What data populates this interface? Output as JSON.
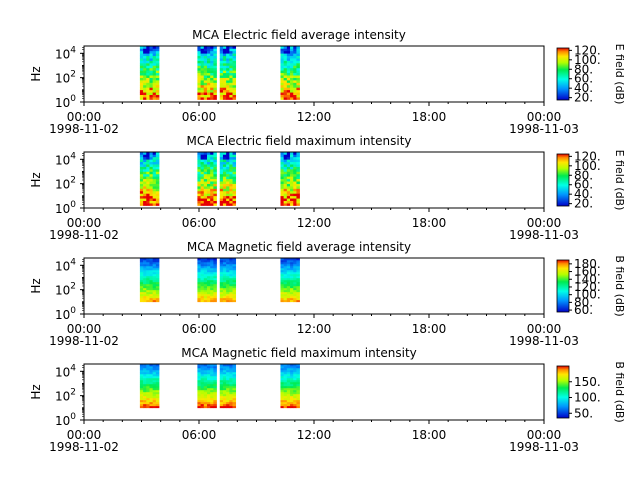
{
  "figure": {
    "time_ticks": [
      "00:00",
      "06:00",
      "12:00",
      "18:00",
      "00:00"
    ],
    "date_start": "1998-11-02",
    "date_end": "1998-11-03"
  },
  "chart_data": [
    {
      "type": "heatmap",
      "title": "MCA  Electric field average intensity",
      "ylabel": "Hz",
      "yscale": "log",
      "y_ticks": [
        "10^0",
        "10^2",
        "10^4"
      ],
      "colorbar_label": "E field (dB)",
      "colorbar_ticks": [
        "120.",
        "100.",
        "80.",
        "60.",
        "40.",
        "20."
      ],
      "colorbar_range": [
        15,
        125
      ],
      "x_range_hours": [
        0,
        24
      ],
      "data_intervals": [
        {
          "start": "02:55",
          "end": "03:55"
        },
        {
          "start": "05:55",
          "end": "06:55"
        },
        {
          "start": "07:05",
          "end": "07:55"
        },
        {
          "start": "10:15",
          "end": "11:15"
        }
      ]
    },
    {
      "type": "heatmap",
      "title": "MCA  Electric field maximum intensity",
      "ylabel": "Hz",
      "yscale": "log",
      "y_ticks": [
        "10^0",
        "10^2",
        "10^4"
      ],
      "colorbar_label": "E field (dB)",
      "colorbar_ticks": [
        "120.",
        "100.",
        "80.",
        "60.",
        "40.",
        "20."
      ],
      "colorbar_range": [
        15,
        125
      ],
      "x_range_hours": [
        0,
        24
      ],
      "data_intervals": [
        {
          "start": "02:55",
          "end": "03:55"
        },
        {
          "start": "05:55",
          "end": "06:55"
        },
        {
          "start": "07:05",
          "end": "07:55"
        },
        {
          "start": "10:15",
          "end": "11:15"
        }
      ]
    },
    {
      "type": "heatmap",
      "title": "MCA  Magnetic field average intensity",
      "ylabel": "Hz",
      "yscale": "log",
      "y_ticks": [
        "10^0",
        "10^2",
        "10^4"
      ],
      "colorbar_label": "B field (dB)",
      "colorbar_ticks": [
        "180.",
        "160.",
        "140.",
        "120.",
        "100.",
        "80.",
        "60."
      ],
      "colorbar_range": [
        55,
        190
      ],
      "x_range_hours": [
        0,
        24
      ],
      "data_intervals": [
        {
          "start": "02:55",
          "end": "03:55"
        },
        {
          "start": "05:55",
          "end": "06:55"
        },
        {
          "start": "07:05",
          "end": "07:55"
        },
        {
          "start": "10:15",
          "end": "11:15"
        }
      ]
    },
    {
      "type": "heatmap",
      "title": "MCA  Magnetic field maximum intensity",
      "ylabel": "Hz",
      "yscale": "log",
      "y_ticks": [
        "10^0",
        "10^2",
        "10^4"
      ],
      "colorbar_label": "B field (dB)",
      "colorbar_ticks": [
        "150.",
        "100.",
        "50."
      ],
      "colorbar_range": [
        35,
        200
      ],
      "x_range_hours": [
        0,
        24
      ],
      "data_intervals": [
        {
          "start": "02:55",
          "end": "03:55"
        },
        {
          "start": "05:55",
          "end": "06:55"
        },
        {
          "start": "07:05",
          "end": "07:55"
        },
        {
          "start": "10:15",
          "end": "11:15"
        }
      ]
    }
  ]
}
